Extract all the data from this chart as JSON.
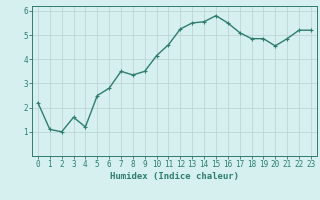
{
  "x": [
    0,
    1,
    2,
    3,
    4,
    5,
    6,
    7,
    8,
    9,
    10,
    11,
    12,
    13,
    14,
    15,
    16,
    17,
    18,
    19,
    20,
    21,
    22,
    23
  ],
  "y": [
    2.2,
    1.1,
    1.0,
    1.6,
    1.2,
    2.5,
    2.8,
    3.5,
    3.35,
    3.5,
    4.15,
    4.6,
    5.25,
    5.5,
    5.55,
    5.8,
    5.5,
    5.1,
    4.85,
    4.85,
    4.55,
    4.85,
    5.2,
    5.2
  ],
  "xlabel": "Humidex (Indice chaleur)",
  "ylim": [
    0,
    6.2
  ],
  "xlim": [
    -0.5,
    23.5
  ],
  "yticks": [
    1,
    2,
    3,
    4,
    5,
    6
  ],
  "xticks": [
    0,
    1,
    2,
    3,
    4,
    5,
    6,
    7,
    8,
    9,
    10,
    11,
    12,
    13,
    14,
    15,
    16,
    17,
    18,
    19,
    20,
    21,
    22,
    23
  ],
  "line_color": "#2e7d6e",
  "marker": "+",
  "bg_color": "#d6f0f0",
  "grid_color": "#b8d0d0",
  "axis_color": "#2e7d6e",
  "tick_label_color": "#2e7d6e",
  "xlabel_color": "#2e7d6e",
  "xlabel_fontsize": 6.5,
  "tick_fontsize": 5.5,
  "linewidth": 1.0,
  "markersize": 3,
  "markeredgewidth": 0.8
}
